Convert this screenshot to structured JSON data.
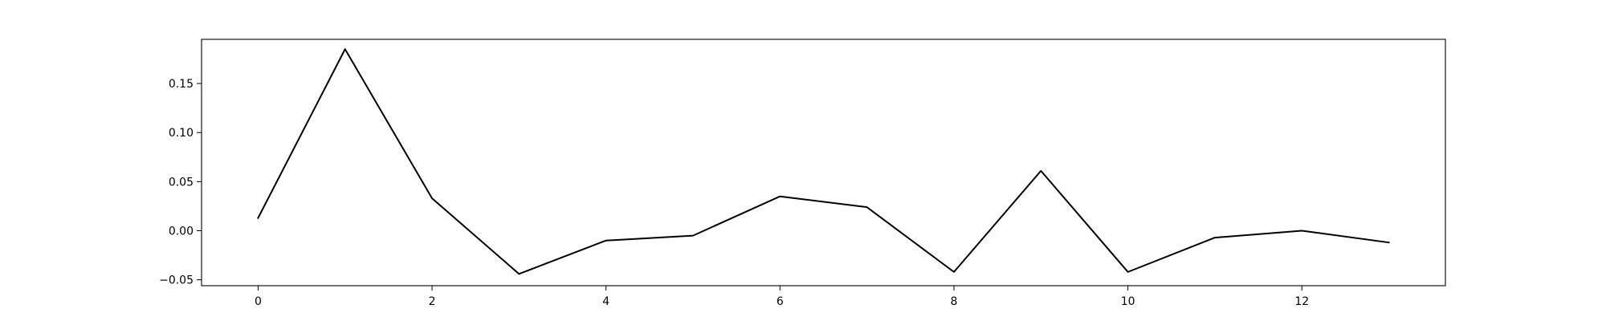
{
  "chart_data": {
    "type": "line",
    "title": "",
    "xlabel": "",
    "ylabel": "",
    "xlim": [
      -0.65,
      13.65
    ],
    "ylim": [
      -0.056,
      0.195
    ],
    "grid": false,
    "legend": "none",
    "x_ticks": [
      0,
      2,
      4,
      6,
      8,
      10,
      12
    ],
    "x_tick_labels": [
      "0",
      "2",
      "4",
      "6",
      "8",
      "10",
      "12"
    ],
    "y_ticks": [
      -0.05,
      0.0,
      0.05,
      0.1,
      0.15
    ],
    "y_tick_labels": [
      "−0.05",
      "0.00",
      "0.05",
      "0.10",
      "0.15"
    ],
    "series": [
      {
        "color": "#000000",
        "x": [
          0,
          1,
          2,
          3,
          4,
          5,
          6,
          7,
          8,
          9,
          10,
          11,
          12,
          13
        ],
        "values": [
          0.013,
          0.185,
          0.033,
          -0.044,
          -0.01,
          -0.005,
          0.035,
          0.024,
          -0.042,
          0.061,
          -0.042,
          -0.007,
          0.0,
          -0.012
        ]
      }
    ]
  }
}
